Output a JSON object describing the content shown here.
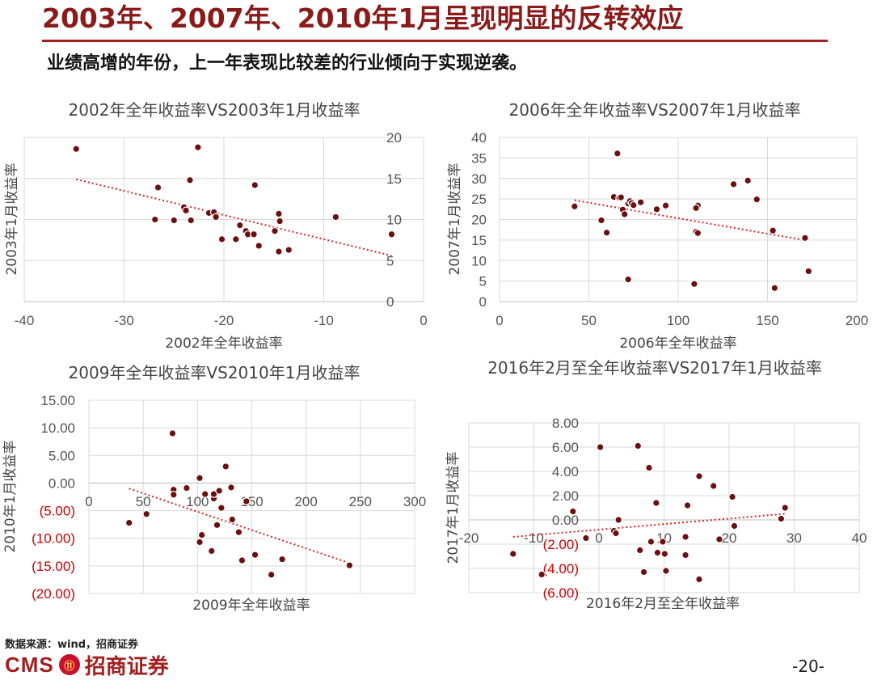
{
  "slide": {
    "title": "2003年、2007年、2010年1月呈现明显的反转效应",
    "subtitle": "业绩高增的年份，上一年表现比较差的行业倾向于实现逆袭。",
    "source": "数据来源：wind，招商证券",
    "page_number": "-20-",
    "logo_latin": "CMS",
    "logo_badge": "⑪",
    "logo_chinese": "招商证券"
  },
  "colors": {
    "title": "#8b1a1a",
    "rule": "#a31f1f",
    "point": "#6b0f0f",
    "trend": "#e02020",
    "negative_tick": "#d00000"
  },
  "chart_data": [
    {
      "type": "scatter",
      "title": "2002年全年收益率VS2003年1月收益率",
      "xlabel": "2002年全年收益率",
      "ylabel": "2003年1月收益率",
      "xlim": [
        -40,
        0
      ],
      "ylim": [
        0,
        20
      ],
      "xticks": [
        -40,
        -30,
        -20,
        -10,
        0
      ],
      "xtick_labels": [
        "-40",
        "-30",
        "-20",
        "-10",
        "0"
      ],
      "yticks": [
        0,
        5,
        10,
        15,
        20
      ],
      "ytick_labels": [
        "0",
        "5",
        "10",
        "15",
        "20"
      ],
      "x": [
        -34.8,
        -22.6,
        -26.6,
        -23.4,
        -24.0,
        -23.8,
        -26.9,
        -25.0,
        -23.3,
        -21.5,
        -21.0,
        -20.8,
        -20.2,
        -18.8,
        -18.4,
        -17.8,
        -17.6,
        -17.0,
        -16.9,
        -16.5,
        -14.9,
        -14.5,
        -14.4,
        -14.5,
        -13.5,
        -8.8,
        -3.2
      ],
      "y": [
        18.6,
        18.8,
        13.9,
        14.8,
        11.5,
        11.1,
        10.0,
        9.9,
        9.9,
        10.8,
        10.9,
        10.3,
        7.6,
        7.6,
        9.3,
        8.6,
        8.2,
        8.2,
        14.2,
        6.8,
        8.6,
        10.7,
        9.8,
        6.1,
        6.3,
        10.3,
        8.2
      ],
      "trend": {
        "x": [
          -34.8,
          -3.2
        ],
        "y": [
          14.9,
          5.6
        ]
      },
      "grid": true,
      "legend": "none"
    },
    {
      "type": "scatter",
      "title": "2006年全年收益率VS2007年1月收益率",
      "xlabel": "2006年全年收益率",
      "ylabel": "2007年1月收益率",
      "xlim": [
        0,
        200
      ],
      "ylim": [
        0,
        40
      ],
      "xticks": [
        0,
        50,
        100,
        150,
        200
      ],
      "xtick_labels": [
        "0",
        "50",
        "100",
        "150",
        "200"
      ],
      "yticks": [
        0,
        5,
        10,
        15,
        20,
        25,
        30,
        35,
        40
      ],
      "ytick_labels": [
        "0",
        "5",
        "10",
        "15",
        "20",
        "25",
        "30",
        "35",
        "40"
      ],
      "x": [
        42,
        57,
        60,
        64,
        66,
        67,
        68,
        69,
        70,
        72,
        73,
        74,
        75,
        79,
        88,
        93,
        72,
        109,
        110,
        111,
        111,
        110,
        131,
        139,
        144,
        153,
        154,
        171,
        173
      ],
      "y": [
        23.2,
        19.8,
        16.8,
        25.5,
        36.1,
        25.3,
        25.4,
        22.4,
        21.3,
        23.9,
        24.5,
        24.0,
        23.5,
        24.2,
        22.5,
        23.4,
        5.4,
        4.3,
        17.0,
        16.7,
        23.4,
        22.8,
        28.6,
        29.5,
        24.9,
        17.3,
        3.3,
        15.5,
        7.4
      ],
      "trend": {
        "x": [
          42,
          173
        ],
        "y": [
          24.7,
          14.8
        ]
      },
      "grid": true,
      "legend": "none"
    },
    {
      "type": "scatter",
      "title": "2009年全年收益率VS2010年1月收益率",
      "xlabel": "2009年全年收益率",
      "ylabel": "2010年1月收益率",
      "xlim": [
        0,
        300
      ],
      "ylim": [
        -20,
        15
      ],
      "xticks": [
        0,
        50,
        100,
        150,
        200,
        250,
        300
      ],
      "xtick_labels": [
        "0",
        "50",
        "100",
        "150",
        "200",
        "250",
        "300"
      ],
      "yticks": [
        15,
        10,
        5,
        0,
        -5,
        -10,
        -15,
        -20
      ],
      "ytick_labels": [
        "15.00",
        "10.00",
        "5.00",
        "0.00",
        "(5.00)",
        "(10.00)",
        "(15.00)",
        "(20.00)"
      ],
      "x": [
        77,
        37,
        53,
        78,
        78,
        90,
        102,
        107,
        104,
        102,
        113,
        115,
        115,
        118,
        120,
        122,
        126,
        132,
        131,
        138,
        141,
        145,
        153,
        168,
        178,
        240
      ],
      "y": [
        9.0,
        -7.2,
        -5.6,
        -1.2,
        -2.1,
        -0.9,
        0.9,
        -2.0,
        -9.4,
        -10.7,
        -12.3,
        -2.8,
        -2.0,
        -7.6,
        -1.4,
        -4.5,
        3.0,
        -6.6,
        -0.8,
        -8.9,
        -14.0,
        -3.3,
        -13.0,
        -16.6,
        -13.8,
        -14.9
      ],
      "trend": {
        "x": [
          37,
          240
        ],
        "y": [
          -1.0,
          -14.5
        ]
      },
      "grid": true,
      "legend": "none"
    },
    {
      "type": "scatter",
      "title": "2016年2月至全年收益率VS2017年1月收益率",
      "xlabel": "2016年2月至全年收益率",
      "ylabel": "2017年1月收益率",
      "xlim": [
        -20,
        40
      ],
      "ylim": [
        -6,
        8
      ],
      "xticks": [
        -20,
        -10,
        0,
        10,
        20,
        30,
        40
      ],
      "xtick_labels": [
        "-20",
        "-10",
        "0",
        "10",
        "20",
        "30",
        "40"
      ],
      "yticks": [
        8,
        6,
        4,
        2,
        0,
        -2,
        -4,
        -6
      ],
      "ytick_labels": [
        "8.00",
        "6.00",
        "4.00",
        "2.00",
        "0.00",
        "(2.00)",
        "(4.00)",
        "(6.00)"
      ],
      "x": [
        -13.2,
        -8.8,
        -4.0,
        -2.0,
        0.2,
        2.3,
        2.6,
        3.0,
        6.0,
        6.3,
        6.9,
        7.7,
        8.0,
        8.8,
        9.0,
        9.8,
        10.1,
        10.3,
        13.3,
        13.3,
        13.6,
        15.4,
        15.4,
        17.6,
        18.5,
        20.5,
        20.8,
        28.0,
        28.6
      ],
      "y": [
        -2.8,
        -4.5,
        0.7,
        -1.5,
        6.0,
        -0.9,
        -1.1,
        0.0,
        6.1,
        -2.5,
        -4.3,
        4.3,
        -1.8,
        1.4,
        -2.7,
        -1.8,
        -2.8,
        -4.2,
        -1.4,
        -2.9,
        1.2,
        -4.9,
        3.6,
        2.8,
        -1.6,
        1.9,
        -0.5,
        0.1,
        1.0
      ],
      "trend": {
        "x": [
          -13.2,
          28.6
        ],
        "y": [
          -1.4,
          0.5
        ]
      },
      "grid": true,
      "legend": "none"
    }
  ]
}
